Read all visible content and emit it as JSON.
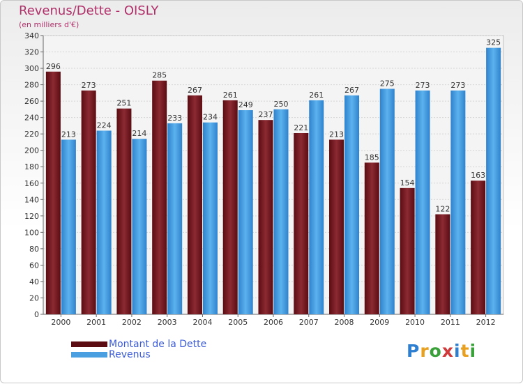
{
  "header": {
    "title": "Revenus/Dette - OISLY",
    "subtitle": "(en milliers d'€)"
  },
  "chart_data": {
    "type": "bar",
    "categories": [
      "2000",
      "2001",
      "2002",
      "2003",
      "2004",
      "2005",
      "2006",
      "2007",
      "2008",
      "2009",
      "2010",
      "2011",
      "2012"
    ],
    "series": [
      {
        "name": "Montant de la Dette",
        "values": [
          296,
          273,
          251,
          285,
          267,
          261,
          237,
          221,
          213,
          185,
          154,
          122,
          163
        ],
        "color": "#7a1e26"
      },
      {
        "name": "Revenus",
        "values": [
          213,
          224,
          214,
          233,
          234,
          249,
          250,
          261,
          267,
          275,
          273,
          273,
          325
        ],
        "color": "#4a9fe0"
      }
    ],
    "ylim": [
      0,
      340
    ],
    "yticks": [
      0,
      20,
      40,
      60,
      80,
      100,
      120,
      140,
      160,
      180,
      200,
      220,
      240,
      260,
      280,
      300,
      320,
      340
    ],
    "grid": true,
    "legend": "bottom-left"
  },
  "logo": {
    "letters": [
      "P",
      "r",
      "o",
      "x",
      "i",
      "t",
      "i"
    ],
    "colors": [
      "#2f7fd0",
      "#e8a020",
      "#3aa03a",
      "#d03a3a",
      "#2f7fd0",
      "#e8a020",
      "#3aa03a"
    ]
  }
}
